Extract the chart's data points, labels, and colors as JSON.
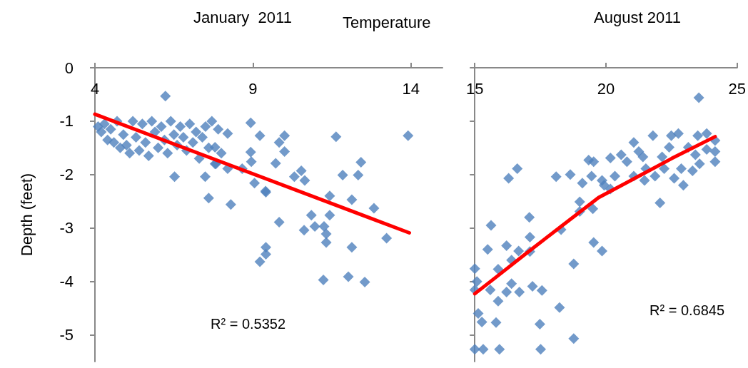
{
  "chart_data": [
    {
      "type": "scatter",
      "title": "January  2011",
      "xlabel": "Temperature",
      "ylabel": "Depth (feet)",
      "marker": "diamond",
      "grid": false,
      "xlim": [
        4,
        15
      ],
      "xticks": [
        4,
        9,
        14
      ],
      "ylim": [
        -5.5,
        0
      ],
      "yticks": [
        0,
        -1,
        -2,
        -3,
        -4,
        -5
      ],
      "annotations": [
        "R² = 0.5352"
      ],
      "series": [
        {
          "color": "#4f81bd",
          "x": [
            4.1,
            4.2,
            4.3,
            4.4,
            4.5,
            4.6,
            4.7,
            4.8,
            4.9,
            5.0,
            5.1,
            5.2,
            5.3,
            5.4,
            5.5,
            5.6,
            5.7,
            5.8,
            5.9,
            6.0,
            6.1,
            6.2,
            6.3,
            6.4,
            6.5,
            6.6,
            6.7,
            6.8,
            6.9,
            7.0,
            7.1,
            7.2,
            7.3,
            7.4,
            7.5,
            7.6,
            7.7,
            7.8,
            7.9,
            8.0,
            6.23,
            6.52,
            7.49,
            7.6,
            8.2,
            7.8,
            8.93,
            9.22,
            9.4,
            8.3,
            8.93,
            9.05,
            8.66,
            7.83,
            8.2,
            10.0,
            9.83,
            10.0,
            11.63,
            13.91,
            8.95,
            9.72,
            10.31,
            10.53,
            10.64,
            9.41,
            12.42,
            11.84,
            12.33,
            11.43,
            12.13,
            12.83,
            9.83,
            10.85,
            11.43,
            10.62,
            10.96,
            11.25,
            11.32,
            11.32,
            13.23,
            12.13,
            9.41,
            9.41,
            9.22,
            11.23,
            12.02,
            12.54
          ],
          "values": [
            -1.1,
            -1.2,
            -1.05,
            -1.35,
            -1.15,
            -1.4,
            -1.0,
            -1.5,
            -1.25,
            -1.45,
            -1.6,
            -1.0,
            -1.3,
            -1.55,
            -1.05,
            -1.4,
            -1.65,
            -1.0,
            -1.2,
            -1.5,
            -1.1,
            -1.35,
            -1.6,
            -1.0,
            -1.25,
            -1.45,
            -1.1,
            -1.3,
            -1.55,
            -1.05,
            -1.4,
            -1.2,
            -1.7,
            -1.3,
            -1.1,
            -1.5,
            -1.0,
            -1.8,
            -1.15,
            -1.6,
            -0.53,
            -2.04,
            -2.04,
            -2.44,
            -1.23,
            -1.49,
            -1.03,
            -1.27,
            -2.31,
            -2.56,
            -1.58,
            -2.16,
            -1.89,
            -1.8,
            -1.89,
            -1.27,
            -1.4,
            -1.57,
            -1.29,
            -1.27,
            -1.76,
            -1.79,
            -2.04,
            -1.93,
            -2.11,
            -2.33,
            -1.77,
            -2.01,
            -2.01,
            -2.4,
            -2.47,
            -2.63,
            -2.89,
            -2.76,
            -2.76,
            -3.04,
            -2.97,
            -2.97,
            -3.11,
            -3.27,
            -3.19,
            -3.36,
            -3.36,
            -3.49,
            -3.63,
            -3.97,
            -3.91,
            -4.01
          ]
        },
        {
          "type": "line",
          "marker": "none",
          "color": "#ff0000",
          "x": [
            4,
            13.95
          ],
          "values": [
            -0.87,
            -3.09
          ]
        }
      ]
    },
    {
      "type": "scatter",
      "title": "August 2011",
      "marker": "diamond",
      "grid": false,
      "tick_labels": "x",
      "xlim": [
        15,
        25
      ],
      "xticks": [
        15,
        20,
        25
      ],
      "ylim": [
        -5.5,
        0
      ],
      "yticks": [
        0,
        -1,
        -2,
        -3,
        -4,
        -5
      ],
      "annotations": [
        "R² = 0.6845"
      ],
      "series": [
        {
          "color": "#4f81bd",
          "x": [
            16.29,
            16.62,
            18.1,
            19.1,
            15.62,
            17.08,
            15.49,
            16.21,
            17.1,
            16.67,
            17.1,
            18.29,
            19.0,
            19.0,
            19.5,
            19.53,
            19.85,
            15.0,
            15.89,
            16.4,
            18.77,
            15.08,
            15.0,
            15.59,
            16.21,
            16.4,
            16.7,
            17.2,
            17.56,
            15.89,
            18.23,
            15.13,
            15.27,
            15.81,
            17.48,
            18.77,
            15.0,
            15.32,
            15.94,
            17.51,
            23.54,
            19.53,
            20.17,
            20.58,
            21.06,
            21.79,
            22.49,
            22.76,
            23.5,
            23.84,
            24.16,
            24.16,
            24.16,
            23.57,
            22.95,
            22.6,
            22.06,
            21.87,
            21.47,
            21.06,
            20.8,
            20.34,
            19.85,
            19.45,
            21.41,
            22.14,
            22.41,
            23.14,
            23.41,
            23.84,
            22.87,
            23.3,
            22.22,
            21.52,
            21.25,
            19.34,
            20.17,
            19.93,
            18.64
          ],
          "values": [
            -2.07,
            -1.89,
            -2.04,
            -2.16,
            -2.95,
            -2.8,
            -3.4,
            -3.33,
            -3.17,
            -3.43,
            -3.44,
            -3.03,
            -2.51,
            -2.69,
            -2.64,
            -3.27,
            -3.43,
            -3.76,
            -3.77,
            -3.6,
            -3.67,
            -4.0,
            -4.16,
            -4.16,
            -4.2,
            -4.04,
            -4.2,
            -4.09,
            -4.17,
            -4.37,
            -4.49,
            -4.6,
            -4.76,
            -4.77,
            -4.8,
            -5.07,
            -5.27,
            -5.27,
            -5.27,
            -5.27,
            -0.56,
            -1.76,
            -1.69,
            -1.63,
            -1.4,
            -1.27,
            -1.27,
            -1.23,
            -1.27,
            -1.23,
            -1.36,
            -1.57,
            -1.76,
            -1.8,
            -2.2,
            -2.07,
            -2.53,
            -2.03,
            -2.11,
            -2.03,
            -1.76,
            -2.03,
            -2.11,
            -2.03,
            -1.67,
            -1.67,
            -1.49,
            -1.49,
            -1.63,
            -1.53,
            -1.89,
            -1.93,
            -1.89,
            -1.89,
            -1.57,
            -1.73,
            -2.27,
            -2.2,
            -2.0
          ]
        },
        {
          "type": "line",
          "marker": "none",
          "color": "#ff0000",
          "x": [
            15.0,
            15.94,
            16.97,
            18.29,
            19.72,
            21.25,
            22.5,
            24.16
          ],
          "values": [
            -4.23,
            -3.87,
            -3.47,
            -2.97,
            -2.43,
            -2.03,
            -1.7,
            -1.29
          ]
        }
      ]
    }
  ]
}
